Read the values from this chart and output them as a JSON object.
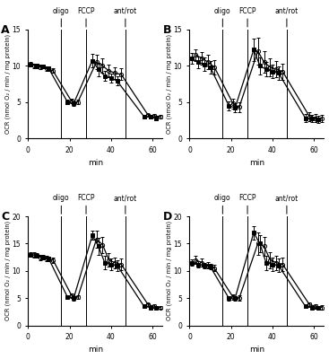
{
  "panel_labels": [
    "A",
    "B",
    "C",
    "D"
  ],
  "xlabel": "min",
  "ylabel": "OCR (nmol O₂ / min / mg protein)",
  "vline_labels": [
    "oligo",
    "FCCP",
    "ant/rot"
  ],
  "vline_positions": [
    16,
    28,
    47
  ],
  "panels": [
    {
      "ylim": [
        0,
        15
      ],
      "yticks": [
        0,
        5,
        10,
        15
      ],
      "series": [
        {
          "x": [
            1,
            4,
            7,
            10,
            19,
            22,
            31,
            34,
            37,
            40,
            43,
            56,
            59,
            62
          ],
          "y": [
            10.2,
            10.0,
            9.9,
            9.6,
            5.0,
            4.8,
            10.7,
            9.5,
            8.6,
            8.3,
            7.9,
            3.0,
            3.0,
            2.8
          ],
          "yerr": [
            0.3,
            0.3,
            0.3,
            0.3,
            0.3,
            0.3,
            0.9,
            0.9,
            0.7,
            0.6,
            0.6,
            0.2,
            0.2,
            0.2
          ],
          "marker": "s",
          "fillstyle": "full",
          "color": "black",
          "markersize": 3
        },
        {
          "x": [
            3,
            6,
            9,
            12,
            21,
            24,
            33,
            36,
            39,
            42,
            45,
            58,
            61,
            64
          ],
          "y": [
            10.0,
            9.8,
            9.6,
            9.3,
            5.1,
            5.0,
            10.5,
            10.0,
            9.3,
            9.0,
            8.8,
            3.2,
            3.1,
            3.0
          ],
          "yerr": [
            0.3,
            0.3,
            0.3,
            0.3,
            0.3,
            0.3,
            1.0,
            1.0,
            0.9,
            0.8,
            0.8,
            0.2,
            0.2,
            0.2
          ],
          "marker": "o",
          "fillstyle": "none",
          "color": "black",
          "markersize": 3
        }
      ]
    },
    {
      "ylim": [
        0,
        15
      ],
      "yticks": [
        0,
        5,
        10,
        15
      ],
      "series": [
        {
          "x": [
            1,
            4,
            7,
            10,
            19,
            22,
            31,
            34,
            37,
            40,
            43,
            56,
            59,
            62
          ],
          "y": [
            11.0,
            10.5,
            10.2,
            9.8,
            4.5,
            4.2,
            12.2,
            10.0,
            9.5,
            9.2,
            9.0,
            2.8,
            2.7,
            2.6
          ],
          "yerr": [
            0.7,
            0.8,
            0.9,
            0.9,
            0.6,
            0.6,
            1.5,
            1.2,
            1.0,
            0.9,
            0.9,
            0.5,
            0.5,
            0.5
          ],
          "marker": "s",
          "fillstyle": "full",
          "color": "black",
          "markersize": 3
        },
        {
          "x": [
            3,
            6,
            9,
            12,
            21,
            24,
            33,
            36,
            39,
            42,
            45,
            58,
            61,
            64
          ],
          "y": [
            11.5,
            11.0,
            10.5,
            9.8,
            4.8,
            4.3,
            12.0,
            10.5,
            9.8,
            9.5,
            9.2,
            3.0,
            2.8,
            2.7
          ],
          "yerr": [
            0.8,
            0.9,
            1.0,
            1.0,
            0.7,
            0.7,
            1.8,
            1.5,
            1.2,
            1.1,
            1.1,
            0.6,
            0.5,
            0.5
          ],
          "marker": "o",
          "fillstyle": "none",
          "color": "black",
          "markersize": 3
        }
      ]
    },
    {
      "ylim": [
        0,
        20
      ],
      "yticks": [
        0,
        5,
        10,
        15,
        20
      ],
      "series": [
        {
          "x": [
            1,
            4,
            7,
            10,
            19,
            22,
            31,
            34,
            37,
            40,
            43,
            56,
            59,
            62
          ],
          "y": [
            13.0,
            12.8,
            12.5,
            12.2,
            5.2,
            5.0,
            16.5,
            14.5,
            11.5,
            11.2,
            11.0,
            3.5,
            3.3,
            3.2
          ],
          "yerr": [
            0.4,
            0.4,
            0.4,
            0.4,
            0.4,
            0.4,
            0.8,
            1.5,
            1.2,
            1.0,
            1.0,
            0.3,
            0.3,
            0.3
          ],
          "marker": "s",
          "fillstyle": "full",
          "color": "black",
          "markersize": 3
        },
        {
          "x": [
            3,
            6,
            9,
            12,
            21,
            24,
            33,
            36,
            39,
            42,
            45,
            58,
            61,
            64
          ],
          "y": [
            13.0,
            12.5,
            12.2,
            12.0,
            5.5,
            5.2,
            15.8,
            14.8,
            12.0,
            11.5,
            11.2,
            3.8,
            3.5,
            3.3
          ],
          "yerr": [
            0.5,
            0.5,
            0.5,
            0.5,
            0.4,
            0.4,
            1.5,
            1.5,
            1.2,
            1.0,
            1.0,
            0.3,
            0.3,
            0.3
          ],
          "marker": "o",
          "fillstyle": "none",
          "color": "black",
          "markersize": 3
        }
      ]
    },
    {
      "ylim": [
        0,
        20
      ],
      "yticks": [
        0,
        5,
        10,
        15,
        20
      ],
      "series": [
        {
          "x": [
            1,
            4,
            7,
            10,
            19,
            22,
            31,
            34,
            37,
            40,
            43,
            56,
            59,
            62
          ],
          "y": [
            11.5,
            11.2,
            11.0,
            10.8,
            5.0,
            5.0,
            17.0,
            15.0,
            11.5,
            11.2,
            11.0,
            3.5,
            3.3,
            3.2
          ],
          "yerr": [
            0.6,
            0.6,
            0.5,
            0.5,
            0.4,
            0.4,
            1.2,
            1.5,
            1.3,
            1.2,
            1.2,
            0.3,
            0.3,
            0.3
          ],
          "marker": "s",
          "fillstyle": "full",
          "color": "black",
          "markersize": 3
        },
        {
          "x": [
            3,
            6,
            9,
            12,
            21,
            24,
            33,
            36,
            39,
            42,
            45,
            58,
            61,
            64
          ],
          "y": [
            12.0,
            11.5,
            11.0,
            10.5,
            5.2,
            5.0,
            15.0,
            14.5,
            12.0,
            11.5,
            11.2,
            3.8,
            3.5,
            3.3
          ],
          "yerr": [
            0.7,
            0.7,
            0.6,
            0.6,
            0.5,
            0.5,
            2.0,
            1.8,
            1.5,
            1.3,
            1.2,
            0.4,
            0.4,
            0.4
          ],
          "marker": "o",
          "fillstyle": "none",
          "color": "black",
          "markersize": 3
        }
      ]
    }
  ]
}
